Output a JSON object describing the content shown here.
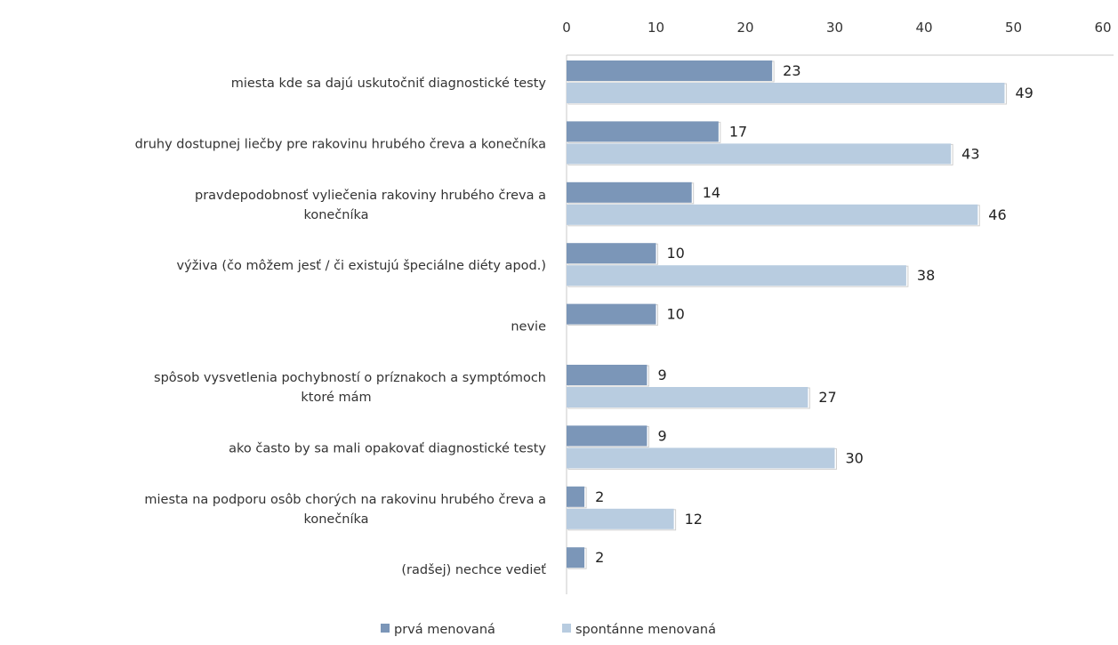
{
  "chart_data": {
    "type": "bar",
    "orientation": "horizontal",
    "categories": [
      [
        "miesta kde sa dajú uskutočniť diagnostické testy"
      ],
      [
        "druhy dostupnej liečby pre rakovinu hrubého čreva a konečníka"
      ],
      [
        "pravdepodobnosť vyliečenia rakoviny hrubého čreva a",
        "konečníka"
      ],
      [
        "výživa (čo môžem jesť / či existujú špeciálne diéty apod.)"
      ],
      [
        "nevie"
      ],
      [
        "spôsob vysvetlenia pochybností o príznakoch a symptómoch",
        "ktoré mám"
      ],
      [
        "ako často by sa mali opakovať diagnostické testy"
      ],
      [
        "miesta na podporu osôb chorých na rakovinu hrubého čreva a",
        "konečníka"
      ],
      [
        "(radšej) nechce vedieť"
      ]
    ],
    "series": [
      {
        "name": "prvá menovaná",
        "color": "#7b96b8",
        "values": [
          23,
          17,
          14,
          10,
          10,
          9,
          9,
          2,
          2
        ]
      },
      {
        "name": "spontánne menovaná",
        "color": "#b8cce0",
        "values": [
          49,
          43,
          46,
          38,
          null,
          27,
          30,
          12,
          null
        ]
      }
    ],
    "xlim": [
      0,
      60
    ],
    "ticks": [
      "0",
      "10",
      "20",
      "30",
      "40",
      "50",
      "60"
    ],
    "tick_values": [
      0,
      10,
      20,
      30,
      40,
      50,
      60
    ],
    "xaxis_position": "top",
    "grid": false,
    "legend_position": "bottom"
  }
}
